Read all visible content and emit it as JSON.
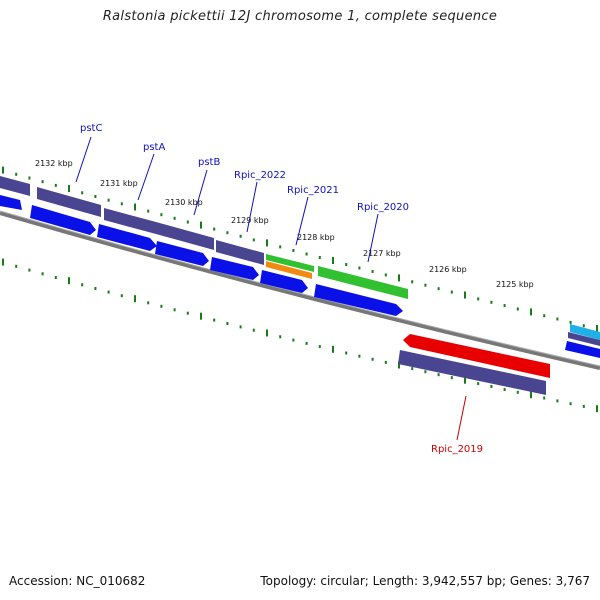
{
  "title": "Ralstonia pickettii 12J chromosome 1, complete sequence",
  "footer": {
    "accession": "Accession: NC_010682",
    "stats": "Topology: circular; Length: 3,942,557 bp; Genes: 3,767"
  },
  "colors": {
    "backbone": "#777777",
    "tick": "#1a7a1a",
    "label_blue": "#1010c0",
    "label_red": "#cc0000",
    "gene_purple": "#4a4590",
    "gene_blue": "#0a10e8",
    "gene_green": "#30c030",
    "gene_orange": "#f08a10",
    "gene_red": "#e80000",
    "gene_cyan": "#20b0e8"
  },
  "scale_labels": [
    "2132 kbp",
    "2131 kbp",
    "2130 kbp",
    "2129 kbp",
    "2128 kbp",
    "2127 kbp",
    "2126 kbp",
    "2125 kbp"
  ],
  "gene_labels": [
    {
      "name": "pstC",
      "color": "blue"
    },
    {
      "name": "pstA",
      "color": "blue"
    },
    {
      "name": "pstB",
      "color": "blue"
    },
    {
      "name": "Rpic_2022",
      "color": "blue"
    },
    {
      "name": "Rpic_2021",
      "color": "blue"
    },
    {
      "name": "Rpic_2020",
      "color": "blue"
    },
    {
      "name": "Rpic_2019",
      "color": "red"
    }
  ]
}
